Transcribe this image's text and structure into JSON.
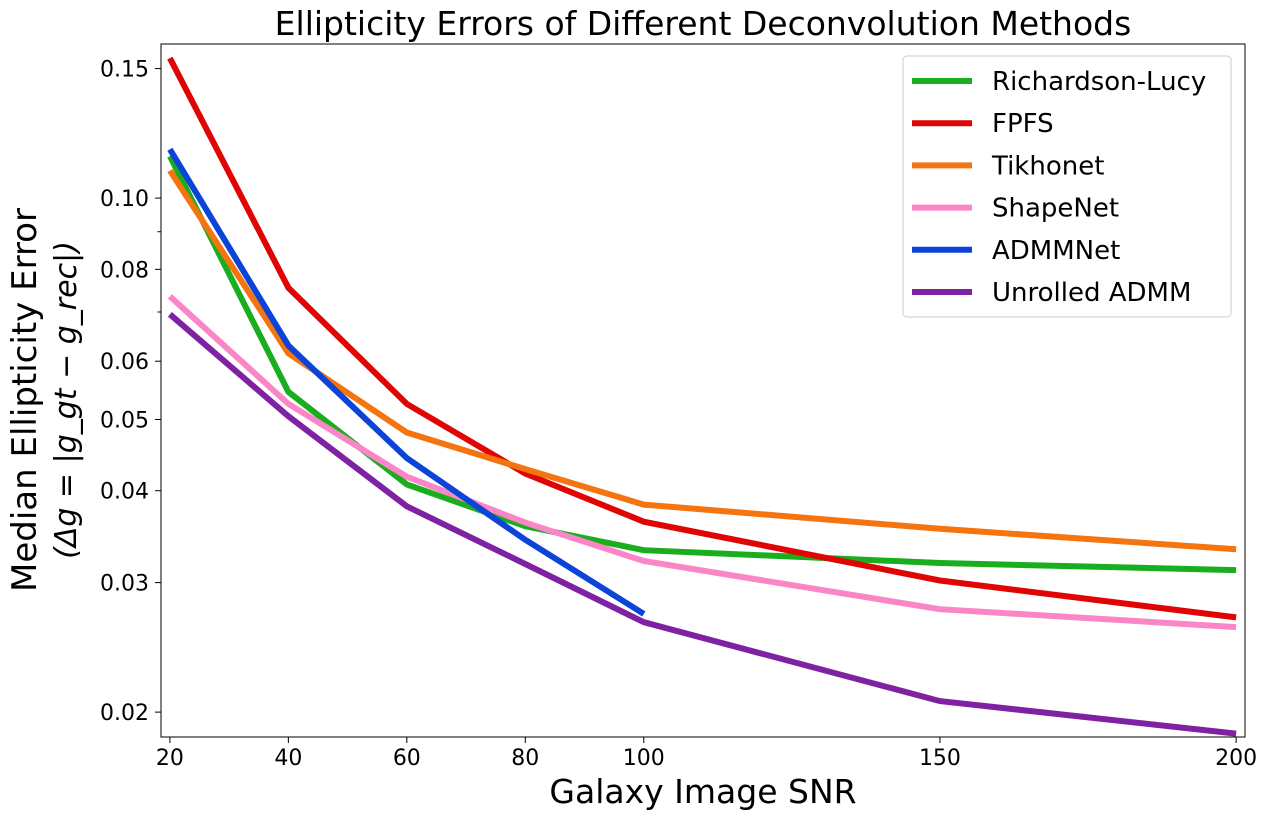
{
  "chart_data": {
    "type": "line",
    "title": "Ellipticity Errors of Different Deconvolution Methods",
    "xlabel": "Galaxy Image SNR",
    "ylabel": "Median Ellipticity Error",
    "ylabel_line2": "(Δg = |g_gt − g_rec|)",
    "xlim": [
      18.5,
      201.5
    ],
    "ylim": [
      0.0185,
      0.162
    ],
    "yscale": "log",
    "grid": false,
    "legend_position": "top-right",
    "x_ticks": [
      20,
      40,
      60,
      80,
      100,
      150,
      200
    ],
    "y_ticks": [
      0.02,
      0.03,
      0.04,
      0.05,
      0.06,
      0.08,
      0.1,
      0.15
    ],
    "y_tick_labels": [
      "0.02",
      "0.03",
      "0.04",
      "0.05",
      "0.06",
      "0.08",
      "0.10",
      "0.15"
    ],
    "series": [
      {
        "name": "Richardson-Lucy",
        "color": "#1aae1f",
        "x": [
          20,
          40,
          60,
          80,
          100,
          150,
          200
        ],
        "values": [
          0.114,
          0.0545,
          0.0408,
          0.0358,
          0.0332,
          0.0319,
          0.0312
        ]
      },
      {
        "name": "FPFS",
        "color": "#e00505",
        "x": [
          20,
          40,
          60,
          80,
          100,
          150,
          200
        ],
        "values": [
          0.155,
          0.0755,
          0.0525,
          0.0422,
          0.0363,
          0.0302,
          0.0269
        ]
      },
      {
        "name": "Tikhonet",
        "color": "#f47410",
        "x": [
          20,
          40,
          60,
          80,
          100,
          150,
          200
        ],
        "values": [
          0.109,
          0.0615,
          0.048,
          0.0428,
          0.0383,
          0.0355,
          0.0333
        ]
      },
      {
        "name": "ShapeNet",
        "color": "#fb86c7",
        "x": [
          20,
          40,
          60,
          80,
          100,
          150,
          200
        ],
        "values": [
          0.0735,
          0.0525,
          0.0418,
          0.0362,
          0.0321,
          0.0276,
          0.0261
        ]
      },
      {
        "name": "ADMMNet",
        "color": "#0c44d8",
        "x": [
          20,
          40,
          60,
          80,
          100
        ],
        "values": [
          0.1165,
          0.063,
          0.0443,
          0.0343,
          0.0272
        ]
      },
      {
        "name": "Unrolled ADMM",
        "color": "#7e21a3",
        "x": [
          20,
          40,
          60,
          80,
          100,
          150,
          200
        ],
        "values": [
          0.0695,
          0.0505,
          0.0381,
          0.0318,
          0.0265,
          0.0207,
          0.0187
        ]
      }
    ]
  }
}
